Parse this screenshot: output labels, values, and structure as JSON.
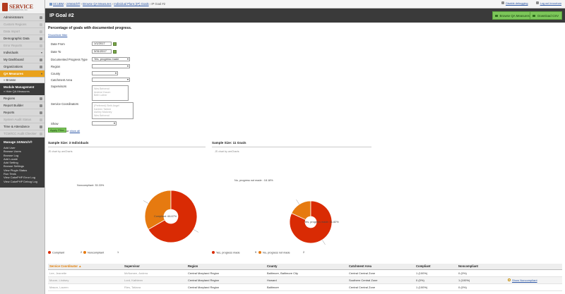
{
  "sidebar": {
    "logo": {
      "word": "SERVICE",
      "tagline": "COORDINATION, INC."
    },
    "items": [
      {
        "label": "Administrators",
        "state": "normal",
        "icon": "users-icon"
      },
      {
        "label": "Custom Regions",
        "state": "disabled",
        "icon": "map-icon"
      },
      {
        "label": "Data Import",
        "state": "disabled",
        "icon": "import-icon"
      },
      {
        "label": "Demographic Data",
        "state": "normal",
        "icon": "pencil-icon"
      },
      {
        "label": "Error Reports",
        "state": "disabled",
        "icon": "warning-icon"
      },
      {
        "label": "Individuals",
        "state": "normal",
        "icon": "chevron-down-icon"
      },
      {
        "label": "My Dashboard",
        "state": "normal",
        "icon": "dashboard-icon"
      },
      {
        "label": "Organizations",
        "state": "normal",
        "icon": "building-icon"
      },
      {
        "label": "QA Measures",
        "state": "active",
        "icon": "chevron-down-icon"
      }
    ],
    "sub_items": [
      "» Browse"
    ],
    "module_management": {
      "heading": "Module Management",
      "link": "» Hide QA Measures"
    },
    "items_after": [
      {
        "label": "Regions",
        "state": "normal",
        "icon": "map-icon"
      },
      {
        "label": "Report Builder",
        "state": "normal",
        "icon": "report-icon"
      },
      {
        "label": "Reports",
        "state": "normal",
        "icon": "chart-icon"
      },
      {
        "label": "System Audit Status",
        "state": "disabled",
        "icon": "audit-icon"
      },
      {
        "label": "Time & Attendance",
        "state": "normal",
        "icon": "clock-icon"
      },
      {
        "label": "TCM/ICC Audit Checker",
        "state": "disabled",
        "icon": "check-icon"
      }
    ],
    "manage": {
      "heading": "Manage 24Watch®",
      "links": [
        "Add User",
        "Browse Users",
        "Browse Log",
        "Add Locale",
        "Add Setting",
        "Browse Settings",
        "View Plugin Status",
        "Run Tests",
        "View CakePHP Error Log",
        "View CakePHP Debug Log"
      ]
    }
  },
  "topbar": {
    "breadcrumb": [
      "SCUBM",
      "24Watch®",
      "Browse QA Measures",
      "Individual Plans (IP) Goals",
      "IP Goal #2"
    ],
    "disable_debugging": "Disable debugging",
    "logout": "Log out Innovirum"
  },
  "header": {
    "title": "IP Goal #2",
    "browse_button": "Browse QA Measures",
    "download_button": "Download CSV"
  },
  "main": {
    "heading": "Percentage of goals with documented progress.",
    "toggle_filter": "Show/hide filter",
    "filters": {
      "date_from_label": "Date From",
      "date_from_value": "1/1/2017",
      "date_to_label": "Date To",
      "date_to_value": "3/31/2017",
      "doc_progress_label": "Documented Progress Type",
      "doc_progress_value": "Yes, progress made",
      "region_label": "Region",
      "county_label": "County",
      "catchment_label": "Catchment Area",
      "supervisors_label": "Supervisors",
      "supervisors_list": [
        "Wes Behrend",
        "Andrea Yocum",
        "Beth Luther"
      ],
      "service_coord_label": "Service Coordinators",
      "service_coord_list": [
        "(Preferred) Beth Angel",
        "Karleen Tarbee",
        "Ashley Maloney",
        "Wes Behrend"
      ],
      "show_label": "Show",
      "apply_button": "Apply Filter",
      "or_text": "or",
      "show_all": "show all"
    }
  },
  "chart_data": [
    {
      "type": "pie",
      "title": "Sample Size: 3 Individuals",
      "credit": "JS chart by amCharts",
      "categories": [
        "Compliant",
        "Noncompliant"
      ],
      "values": [
        2,
        1
      ],
      "labels": [
        "Compliant: 66.67%",
        "Noncompliant: 33.33%"
      ],
      "colors": [
        "#d92b04",
        "#e67a10"
      ],
      "legend": "bottom-left"
    },
    {
      "type": "pie",
      "title": "Sample Size: 11 Goals",
      "credit": "JS chart by amCharts",
      "categories": [
        "Yes, progress made",
        "No, progress not made"
      ],
      "values": [
        9,
        2
      ],
      "labels": [
        "Yes, progress made: 81.82%",
        "No, progress not made : 18.18%"
      ],
      "colors": [
        "#d92b04",
        "#e67a10"
      ],
      "legend": "bottom-left"
    }
  ],
  "table": {
    "columns": [
      "Service Coordinator",
      "Supervisor",
      "Region",
      "County",
      "Catchment Area",
      "Compliant",
      "Noncompliant"
    ],
    "sort_indicator": "▲",
    "rows": [
      [
        "Lee, Jeanette",
        "McNamee, Andrea",
        "Central Maryland Region",
        "Baltimore, Baltimore City",
        "Central Central Zone",
        "1 (100%)",
        "0 (0%)",
        ""
      ],
      [
        "Moore, Lindsey",
        "Lord, Kathleen",
        "Central Maryland Region",
        "Howard",
        "Southern Central Zone",
        "0 (0%)",
        "1 (100%)",
        "Show Noncompliant"
      ],
      [
        "Mason, Lauren",
        "Ries, Tatiana",
        "Central Maryland Region",
        "Baltimore",
        "Central Central Zone",
        "1 (100%)",
        "0 (0%)",
        ""
      ]
    ]
  },
  "colors": {
    "accent_orange": "#e9a21c",
    "green_button": "#7cc65a",
    "pie_primary": "#d92b04",
    "pie_secondary": "#e67a10",
    "header_dark": "#3a3a3a"
  }
}
